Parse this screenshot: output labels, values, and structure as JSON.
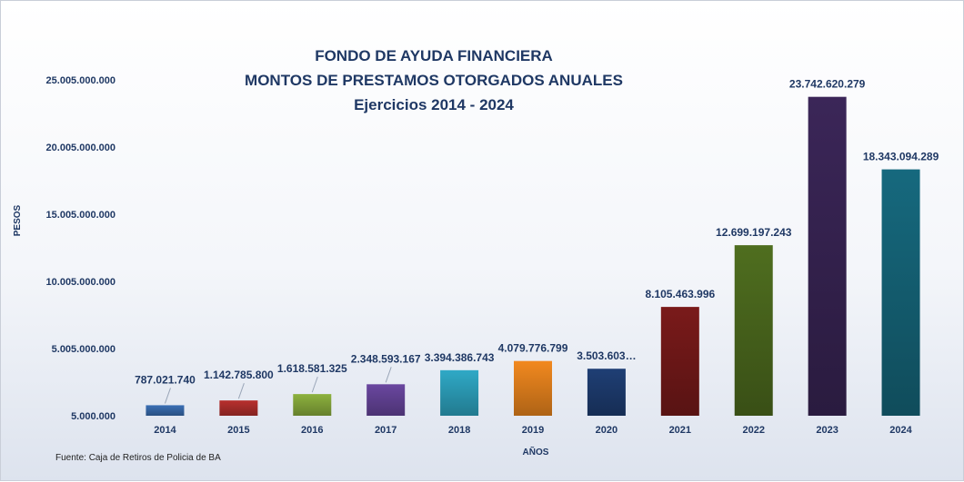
{
  "chart_data": {
    "type": "bar",
    "title": [
      "FONDO DE AYUDA FINANCIERA",
      "MONTOS DE PRESTAMOS OTORGADOS ANUALES",
      "Ejercicios 2014 - 2024"
    ],
    "xlabel": "AÑOS",
    "ylabel": "PESOS",
    "categories": [
      "2014",
      "2015",
      "2016",
      "2017",
      "2018",
      "2019",
      "2020",
      "2021",
      "2022",
      "2023",
      "2024"
    ],
    "values": [
      787021740,
      1142785800,
      1618581325,
      2348593167,
      3394386743,
      4079776799,
      3503603000,
      8105463996,
      12699197243,
      23742620279,
      18343094289
    ],
    "data_labels": [
      "787.021.740",
      "1.142.785.800",
      "1.618.581.325",
      "2.348.593.167",
      "3.394.386.743",
      "4.079.776.799",
      "3.503.603…",
      "8.105.463.996",
      "12.699.197.243",
      "23.742.620.279",
      "18.343.094.289"
    ],
    "colors": [
      "#3a6fb5",
      "#b8302e",
      "#8db23e",
      "#6a47a0",
      "#2fa9c6",
      "#f2891f",
      "#1f3f75",
      "#7a1a1a",
      "#4f6e1f",
      "#3b2658",
      "#16697e"
    ],
    "yticks": [
      "5.000.000",
      "5.005.000.000",
      "10.005.000.000",
      "15.005.000.000",
      "20.005.000.000",
      "25.005.000.000"
    ],
    "ytick_values": [
      5000000,
      5005000000,
      10005000000,
      15005000000,
      20005000000,
      25005000000
    ],
    "ylim": [
      5000000,
      25005000000
    ],
    "grid": false,
    "legend": "none"
  },
  "source": "Fuente: Caja de Retiros de Policia de BA"
}
